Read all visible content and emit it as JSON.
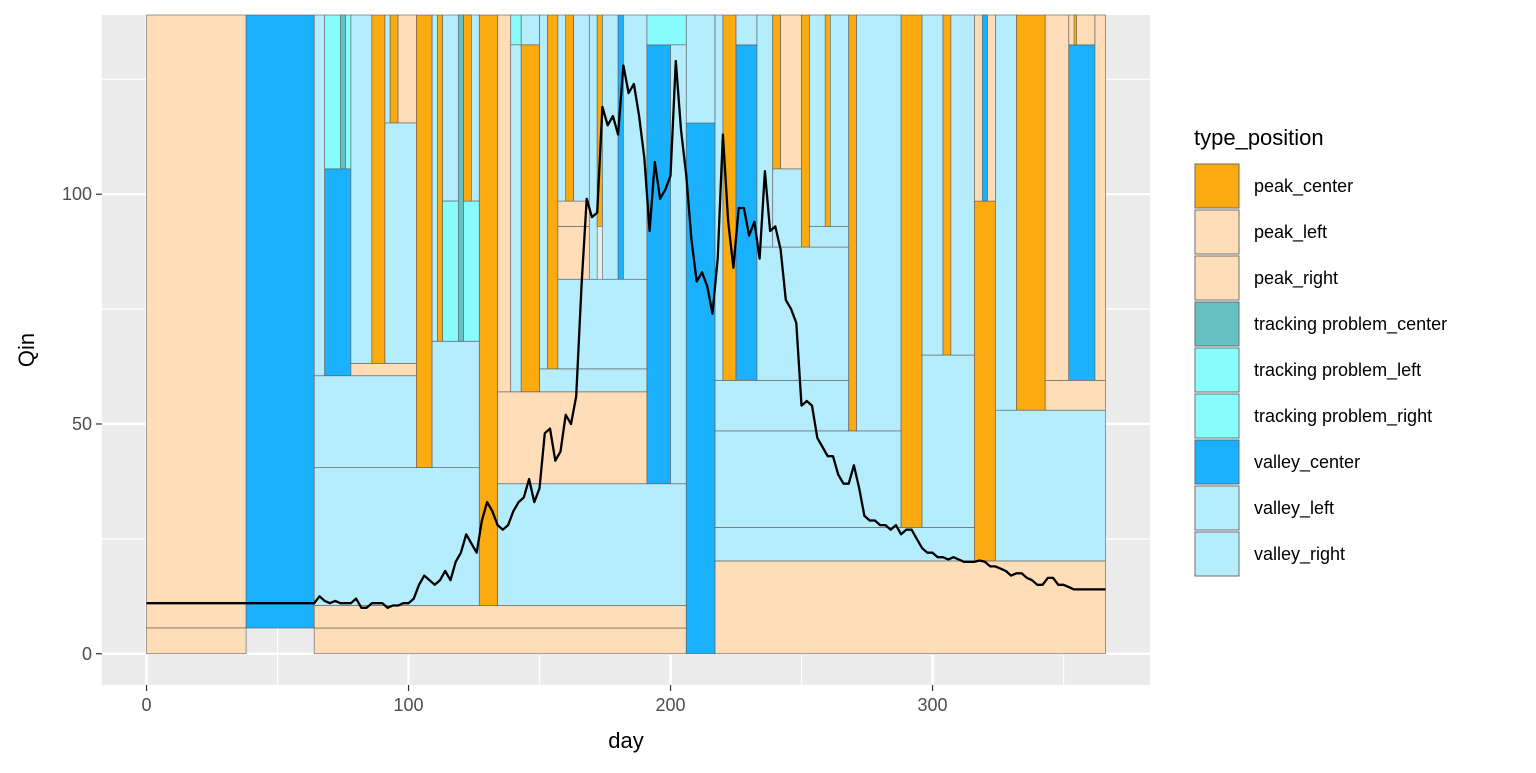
{
  "chart_data": {
    "type": "rect+line",
    "xlabel": "day",
    "ylabel": "Qin",
    "xlim": [
      -17,
      383
    ],
    "ylim": [
      -6.8,
      139
    ],
    "x_ticks": [
      0,
      100,
      200,
      300
    ],
    "y_ticks": [
      0,
      50,
      100
    ],
    "grid": true,
    "legend": {
      "title": "type_position",
      "placement": "right",
      "items": [
        {
          "key": "peak_center",
          "label": "peak_center",
          "color": "#FBAA10"
        },
        {
          "key": "peak_left",
          "label": "peak_left",
          "color": "#FFDDB9"
        },
        {
          "key": "peak_right",
          "label": "peak_right",
          "color": "#FFDDB9"
        },
        {
          "key": "tp_center",
          "label": "tracking problem_center",
          "color": "#66C2C2"
        },
        {
          "key": "tp_left",
          "label": "tracking problem_left",
          "color": "#88FDFD"
        },
        {
          "key": "tp_right",
          "label": "tracking problem_right",
          "color": "#88FDFD"
        },
        {
          "key": "valley_center",
          "label": "valley_center",
          "color": "#1AB2FF"
        },
        {
          "key": "valley_left",
          "label": "valley_left",
          "color": "#B5EDFD"
        },
        {
          "key": "valley_right",
          "label": "valley_right",
          "color": "#B5EDFD"
        }
      ]
    },
    "rects": [
      {
        "x0": 0,
        "x1": 38,
        "y0": 5.6,
        "y1": 139,
        "type": "peak_left"
      },
      {
        "x0": 0,
        "x1": 38,
        "y0": 0,
        "y1": 5.6,
        "type": "peak_left"
      },
      {
        "x0": 38,
        "x1": 64,
        "y0": 5.6,
        "y1": 139,
        "type": "valley_center"
      },
      {
        "x0": 64,
        "x1": 206,
        "y0": 0,
        "y1": 5.6,
        "type": "peak_left"
      },
      {
        "x0": 64,
        "x1": 206,
        "y0": 5.6,
        "y1": 10.5,
        "type": "peak_left"
      },
      {
        "x0": 64,
        "x1": 127,
        "y0": 10.5,
        "y1": 40.5,
        "type": "valley_left"
      },
      {
        "x0": 64,
        "x1": 103,
        "y0": 40.5,
        "y1": 60.5,
        "type": "valley_left"
      },
      {
        "x0": 64,
        "x1": 68,
        "y0": 60.5,
        "y1": 139,
        "type": "valley_left"
      },
      {
        "x0": 68,
        "x1": 78,
        "y0": 105.5,
        "y1": 139,
        "type": "tp_left"
      },
      {
        "x0": 74,
        "x1": 76,
        "y0": 105.5,
        "y1": 139,
        "type": "tp_center"
      },
      {
        "x0": 68,
        "x1": 78,
        "y0": 60.5,
        "y1": 105.5,
        "type": "valley_center"
      },
      {
        "x0": 78,
        "x1": 103,
        "y0": 60.5,
        "y1": 63.2,
        "type": "peak_left"
      },
      {
        "x0": 78,
        "x1": 86,
        "y0": 63.2,
        "y1": 139,
        "type": "valley_left"
      },
      {
        "x0": 86,
        "x1": 91,
        "y0": 63.2,
        "y1": 139,
        "type": "peak_center"
      },
      {
        "x0": 91,
        "x1": 93,
        "y0": 63.2,
        "y1": 139,
        "type": "valley_left"
      },
      {
        "x0": 93,
        "x1": 96,
        "y0": 115.5,
        "y1": 139,
        "type": "peak_center"
      },
      {
        "x0": 96,
        "x1": 103,
        "y0": 115.5,
        "y1": 139,
        "type": "peak_left"
      },
      {
        "x0": 91,
        "x1": 103,
        "y0": 63.2,
        "y1": 115.5,
        "type": "valley_left"
      },
      {
        "x0": 103,
        "x1": 109,
        "y0": 40.5,
        "y1": 139,
        "type": "peak_center"
      },
      {
        "x0": 109,
        "x1": 127,
        "y0": 40.5,
        "y1": 68,
        "type": "valley_left"
      },
      {
        "x0": 109,
        "x1": 111,
        "y0": 68,
        "y1": 139,
        "type": "valley_left"
      },
      {
        "x0": 111,
        "x1": 113,
        "y0": 68,
        "y1": 139,
        "type": "peak_center"
      },
      {
        "x0": 113,
        "x1": 127,
        "y0": 98.5,
        "y1": 139,
        "type": "valley_left"
      },
      {
        "x0": 113,
        "x1": 127,
        "y0": 68,
        "y1": 98.5,
        "type": "tp_left"
      },
      {
        "x0": 119,
        "x1": 121,
        "y0": 68,
        "y1": 139,
        "type": "tp_center"
      },
      {
        "x0": 121,
        "x1": 124,
        "y0": 98.5,
        "y1": 139,
        "type": "peak_center"
      },
      {
        "x0": 127,
        "x1": 134,
        "y0": 10.5,
        "y1": 139,
        "type": "peak_center"
      },
      {
        "x0": 134,
        "x1": 206,
        "y0": 10.5,
        "y1": 37,
        "type": "valley_left"
      },
      {
        "x0": 134,
        "x1": 191,
        "y0": 37,
        "y1": 57,
        "type": "peak_left"
      },
      {
        "x0": 134,
        "x1": 139,
        "y0": 57,
        "y1": 139,
        "type": "peak_right"
      },
      {
        "x0": 139,
        "x1": 143,
        "y0": 132.5,
        "y1": 139,
        "type": "tp_left"
      },
      {
        "x0": 139,
        "x1": 143,
        "y0": 57,
        "y1": 132.5,
        "type": "valley_left"
      },
      {
        "x0": 143,
        "x1": 150,
        "y0": 132.5,
        "y1": 139,
        "type": "valley_left"
      },
      {
        "x0": 143,
        "x1": 150,
        "y0": 57,
        "y1": 132.5,
        "type": "peak_center"
      },
      {
        "x0": 150,
        "x1": 191,
        "y0": 57,
        "y1": 62,
        "type": "valley_left"
      },
      {
        "x0": 150,
        "x1": 153,
        "y0": 62,
        "y1": 139,
        "type": "valley_left"
      },
      {
        "x0": 153,
        "x1": 157,
        "y0": 62,
        "y1": 139,
        "type": "peak_center"
      },
      {
        "x0": 157,
        "x1": 191,
        "y0": 62,
        "y1": 81.5,
        "type": "valley_left"
      },
      {
        "x0": 157,
        "x1": 169,
        "y0": 81.5,
        "y1": 93,
        "type": "peak_left"
      },
      {
        "x0": 157,
        "x1": 169,
        "y0": 93,
        "y1": 98.5,
        "type": "peak_left"
      },
      {
        "x0": 157,
        "x1": 160,
        "y0": 98.5,
        "y1": 139,
        "type": "valley_left"
      },
      {
        "x0": 160,
        "x1": 163,
        "y0": 98.5,
        "y1": 139,
        "type": "peak_center"
      },
      {
        "x0": 163,
        "x1": 169,
        "y0": 98.5,
        "y1": 139,
        "type": "valley_left"
      },
      {
        "x0": 169,
        "x1": 172,
        "y0": 81.5,
        "y1": 139,
        "type": "valley_left"
      },
      {
        "x0": 172,
        "x1": 174,
        "y0": 93,
        "y1": 139,
        "type": "peak_center"
      },
      {
        "x0": 174,
        "x1": 180,
        "y0": 81.5,
        "y1": 139,
        "type": "valley_left"
      },
      {
        "x0": 180,
        "x1": 182,
        "y0": 81.5,
        "y1": 139,
        "type": "valley_center"
      },
      {
        "x0": 182,
        "x1": 191,
        "y0": 81.5,
        "y1": 139,
        "type": "valley_left"
      },
      {
        "x0": 191,
        "x1": 200,
        "y0": 37,
        "y1": 132.5,
        "type": "valley_center"
      },
      {
        "x0": 191,
        "x1": 206,
        "y0": 132.5,
        "y1": 139,
        "type": "tp_left"
      },
      {
        "x0": 200,
        "x1": 206,
        "y0": 37,
        "y1": 132.5,
        "type": "valley_left"
      },
      {
        "x0": 206,
        "x1": 217,
        "y0": 0,
        "y1": 115.5,
        "type": "valley_center"
      },
      {
        "x0": 206,
        "x1": 217,
        "y0": 115.5,
        "y1": 139,
        "type": "valley_left"
      },
      {
        "x0": 217,
        "x1": 366,
        "y0": 0,
        "y1": 20.2,
        "type": "peak_left"
      },
      {
        "x0": 217,
        "x1": 316,
        "y0": 20.2,
        "y1": 27.5,
        "type": "valley_left"
      },
      {
        "x0": 217,
        "x1": 288,
        "y0": 27.5,
        "y1": 48.5,
        "type": "valley_left"
      },
      {
        "x0": 217,
        "x1": 268,
        "y0": 48.5,
        "y1": 59.5,
        "type": "valley_left"
      },
      {
        "x0": 217,
        "x1": 220,
        "y0": 59.5,
        "y1": 139,
        "type": "valley_left"
      },
      {
        "x0": 220,
        "x1": 225,
        "y0": 59.5,
        "y1": 139,
        "type": "peak_center"
      },
      {
        "x0": 225,
        "x1": 233,
        "y0": 59.5,
        "y1": 132.5,
        "type": "valley_center"
      },
      {
        "x0": 225,
        "x1": 233,
        "y0": 132.5,
        "y1": 139,
        "type": "valley_left"
      },
      {
        "x0": 233,
        "x1": 268,
        "y0": 59.5,
        "y1": 88.5,
        "type": "valley_left"
      },
      {
        "x0": 233,
        "x1": 239,
        "y0": 88.5,
        "y1": 139,
        "type": "valley_left"
      },
      {
        "x0": 239,
        "x1": 242,
        "y0": 105.5,
        "y1": 139,
        "type": "peak_center"
      },
      {
        "x0": 242,
        "x1": 250,
        "y0": 105.5,
        "y1": 139,
        "type": "peak_left"
      },
      {
        "x0": 239,
        "x1": 250,
        "y0": 88.5,
        "y1": 105.5,
        "type": "valley_left"
      },
      {
        "x0": 250,
        "x1": 253,
        "y0": 88.5,
        "y1": 139,
        "type": "peak_center"
      },
      {
        "x0": 253,
        "x1": 268,
        "y0": 93,
        "y1": 139,
        "type": "valley_left"
      },
      {
        "x0": 253,
        "x1": 268,
        "y0": 88.5,
        "y1": 93,
        "type": "valley_left"
      },
      {
        "x0": 259,
        "x1": 261,
        "y0": 93,
        "y1": 139,
        "type": "peak_center"
      },
      {
        "x0": 268,
        "x1": 271,
        "y0": 48.5,
        "y1": 139,
        "type": "peak_center"
      },
      {
        "x0": 271,
        "x1": 288,
        "y0": 48.5,
        "y1": 139,
        "type": "valley_left"
      },
      {
        "x0": 288,
        "x1": 296,
        "y0": 27.5,
        "y1": 139,
        "type": "peak_center"
      },
      {
        "x0": 296,
        "x1": 316,
        "y0": 27.5,
        "y1": 65,
        "type": "valley_left"
      },
      {
        "x0": 296,
        "x1": 304,
        "y0": 65,
        "y1": 139,
        "type": "valley_left"
      },
      {
        "x0": 304,
        "x1": 307,
        "y0": 65,
        "y1": 139,
        "type": "peak_center"
      },
      {
        "x0": 307,
        "x1": 316,
        "y0": 65,
        "y1": 139,
        "type": "valley_left"
      },
      {
        "x0": 316,
        "x1": 324,
        "y0": 20.2,
        "y1": 98.5,
        "type": "peak_center"
      },
      {
        "x0": 316,
        "x1": 324,
        "y0": 98.5,
        "y1": 139,
        "type": "peak_left"
      },
      {
        "x0": 319,
        "x1": 321,
        "y0": 98.5,
        "y1": 139,
        "type": "valley_center"
      },
      {
        "x0": 324,
        "x1": 366,
        "y0": 20.2,
        "y1": 53,
        "type": "valley_left"
      },
      {
        "x0": 324,
        "x1": 332,
        "y0": 53,
        "y1": 139,
        "type": "valley_left"
      },
      {
        "x0": 332,
        "x1": 343,
        "y0": 53,
        "y1": 139,
        "type": "peak_center"
      },
      {
        "x0": 343,
        "x1": 366,
        "y0": 53,
        "y1": 59.5,
        "type": "peak_left"
      },
      {
        "x0": 343,
        "x1": 352,
        "y0": 59.5,
        "y1": 139,
        "type": "peak_left"
      },
      {
        "x0": 352,
        "x1": 362,
        "y0": 59.5,
        "y1": 132.5,
        "type": "valley_center"
      },
      {
        "x0": 352,
        "x1": 362,
        "y0": 132.5,
        "y1": 139,
        "type": "peak_left"
      },
      {
        "x0": 354,
        "x1": 355,
        "y0": 132.5,
        "y1": 139,
        "type": "peak_center"
      },
      {
        "x0": 362,
        "x1": 366,
        "y0": 59.5,
        "y1": 139,
        "type": "peak_left"
      }
    ],
    "line": {
      "x": [
        0,
        20,
        40,
        60,
        64,
        66,
        68,
        70,
        72,
        74,
        76,
        78,
        80,
        82,
        84,
        86,
        88,
        90,
        92,
        94,
        96,
        98,
        100,
        102,
        104,
        106,
        108,
        110,
        112,
        114,
        116,
        118,
        120,
        122,
        124,
        126,
        128,
        130,
        132,
        134,
        136,
        138,
        140,
        142,
        144,
        146,
        148,
        150,
        152,
        154,
        156,
        158,
        160,
        162,
        164,
        166,
        168,
        170,
        172,
        174,
        176,
        178,
        180,
        182,
        184,
        186,
        188,
        190,
        192,
        194,
        196,
        198,
        200,
        202,
        204,
        206,
        208,
        210,
        212,
        214,
        216,
        218,
        220,
        222,
        224,
        226,
        228,
        230,
        232,
        234,
        236,
        238,
        240,
        242,
        244,
        246,
        248,
        250,
        252,
        254,
        256,
        258,
        260,
        262,
        264,
        266,
        268,
        270,
        272,
        274,
        276,
        278,
        280,
        282,
        284,
        286,
        288,
        290,
        292,
        294,
        296,
        298,
        300,
        302,
        304,
        306,
        308,
        310,
        312,
        314,
        316,
        318,
        320,
        322,
        324,
        326,
        328,
        330,
        332,
        334,
        336,
        338,
        340,
        342,
        344,
        346,
        348,
        350,
        352,
        354,
        356,
        358,
        360,
        362,
        364,
        366
      ],
      "y": [
        11,
        11,
        11,
        11,
        11,
        12.5,
        11.5,
        11,
        11.5,
        11,
        11,
        11,
        12,
        10,
        10,
        11,
        11,
        11,
        10,
        10.5,
        10.5,
        11,
        11,
        12,
        15,
        17,
        16,
        15,
        16,
        18,
        16,
        20,
        22,
        26,
        24,
        22,
        29,
        33,
        31,
        28,
        27,
        28,
        31,
        33,
        34,
        38,
        33,
        36,
        48,
        49,
        42,
        44,
        52,
        50,
        56,
        80,
        99,
        95,
        96,
        119,
        115,
        117,
        113,
        128,
        122,
        124,
        117,
        108,
        92,
        107,
        99,
        101,
        104,
        129,
        114,
        104,
        90,
        81,
        83,
        80,
        74,
        86,
        113,
        94,
        84,
        97,
        97,
        91,
        94,
        86,
        105,
        92,
        93,
        88,
        77,
        75,
        72,
        54,
        55,
        54,
        47,
        45,
        43,
        43,
        39,
        37,
        37,
        41,
        36,
        30,
        29,
        29,
        28,
        28,
        27,
        28,
        26,
        27,
        27,
        25,
        23,
        22,
        22,
        21,
        21,
        20.5,
        21,
        20.5,
        20,
        20,
        20,
        20.3,
        20,
        19,
        19,
        18.5,
        18,
        17,
        17.5,
        17.5,
        16.5,
        16,
        15,
        15,
        16.5,
        16.5,
        15,
        15,
        14.5,
        14,
        14,
        14,
        14,
        14,
        14,
        14
      ]
    }
  }
}
